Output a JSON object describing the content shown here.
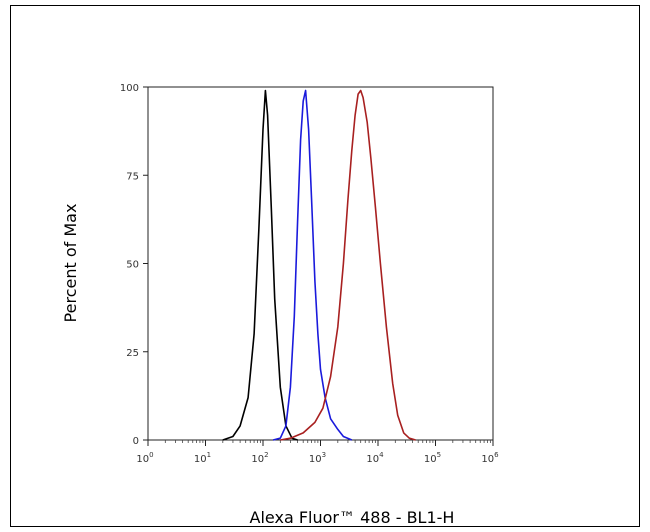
{
  "chart_data": {
    "type": "line",
    "xlabel": "Alexa Fluor™ 488 - BL1-H",
    "ylabel": "Percent of Max",
    "x_scale": "log",
    "xlim": [
      1,
      1000000
    ],
    "ylim": [
      0,
      100
    ],
    "y_ticks": [
      "0",
      "25",
      "50",
      "75",
      "100"
    ],
    "x_ticks": [
      {
        "base": "10",
        "exp": "0"
      },
      {
        "base": "10",
        "exp": "1"
      },
      {
        "base": "10",
        "exp": "2"
      },
      {
        "base": "10",
        "exp": "3"
      },
      {
        "base": "10",
        "exp": "4"
      },
      {
        "base": "10",
        "exp": "5"
      },
      {
        "base": "10",
        "exp": "6"
      }
    ],
    "grid": false,
    "series": [
      {
        "color": "#000000",
        "points": [
          [
            20,
            0
          ],
          [
            30,
            1
          ],
          [
            40,
            4
          ],
          [
            55,
            12
          ],
          [
            70,
            30
          ],
          [
            85,
            60
          ],
          [
            100,
            88
          ],
          [
            110,
            99
          ],
          [
            120,
            92
          ],
          [
            140,
            65
          ],
          [
            160,
            40
          ],
          [
            200,
            15
          ],
          [
            250,
            4
          ],
          [
            320,
            0.5
          ],
          [
            400,
            0
          ]
        ]
      },
      {
        "color": "#1a1adc",
        "points": [
          [
            150,
            0
          ],
          [
            200,
            0.5
          ],
          [
            250,
            4
          ],
          [
            300,
            15
          ],
          [
            350,
            35
          ],
          [
            400,
            62
          ],
          [
            450,
            85
          ],
          [
            500,
            96
          ],
          [
            550,
            99
          ],
          [
            620,
            88
          ],
          [
            700,
            68
          ],
          [
            800,
            45
          ],
          [
            900,
            30
          ],
          [
            1000,
            20
          ],
          [
            1200,
            12
          ],
          [
            1500,
            6
          ],
          [
            2000,
            3
          ],
          [
            2500,
            1
          ],
          [
            3500,
            0
          ]
        ]
      },
      {
        "color": "#a82020",
        "points": [
          [
            200,
            0
          ],
          [
            300,
            0.5
          ],
          [
            500,
            2
          ],
          [
            800,
            5
          ],
          [
            1100,
            9
          ],
          [
            1500,
            18
          ],
          [
            2000,
            32
          ],
          [
            2500,
            50
          ],
          [
            3000,
            68
          ],
          [
            3500,
            82
          ],
          [
            4000,
            92
          ],
          [
            4500,
            98
          ],
          [
            5000,
            99
          ],
          [
            5500,
            97
          ],
          [
            6500,
            90
          ],
          [
            7500,
            80
          ],
          [
            9000,
            66
          ],
          [
            11000,
            50
          ],
          [
            14000,
            32
          ],
          [
            18000,
            16
          ],
          [
            22000,
            7
          ],
          [
            28000,
            2
          ],
          [
            35000,
            0.5
          ],
          [
            45000,
            0
          ]
        ]
      }
    ]
  }
}
